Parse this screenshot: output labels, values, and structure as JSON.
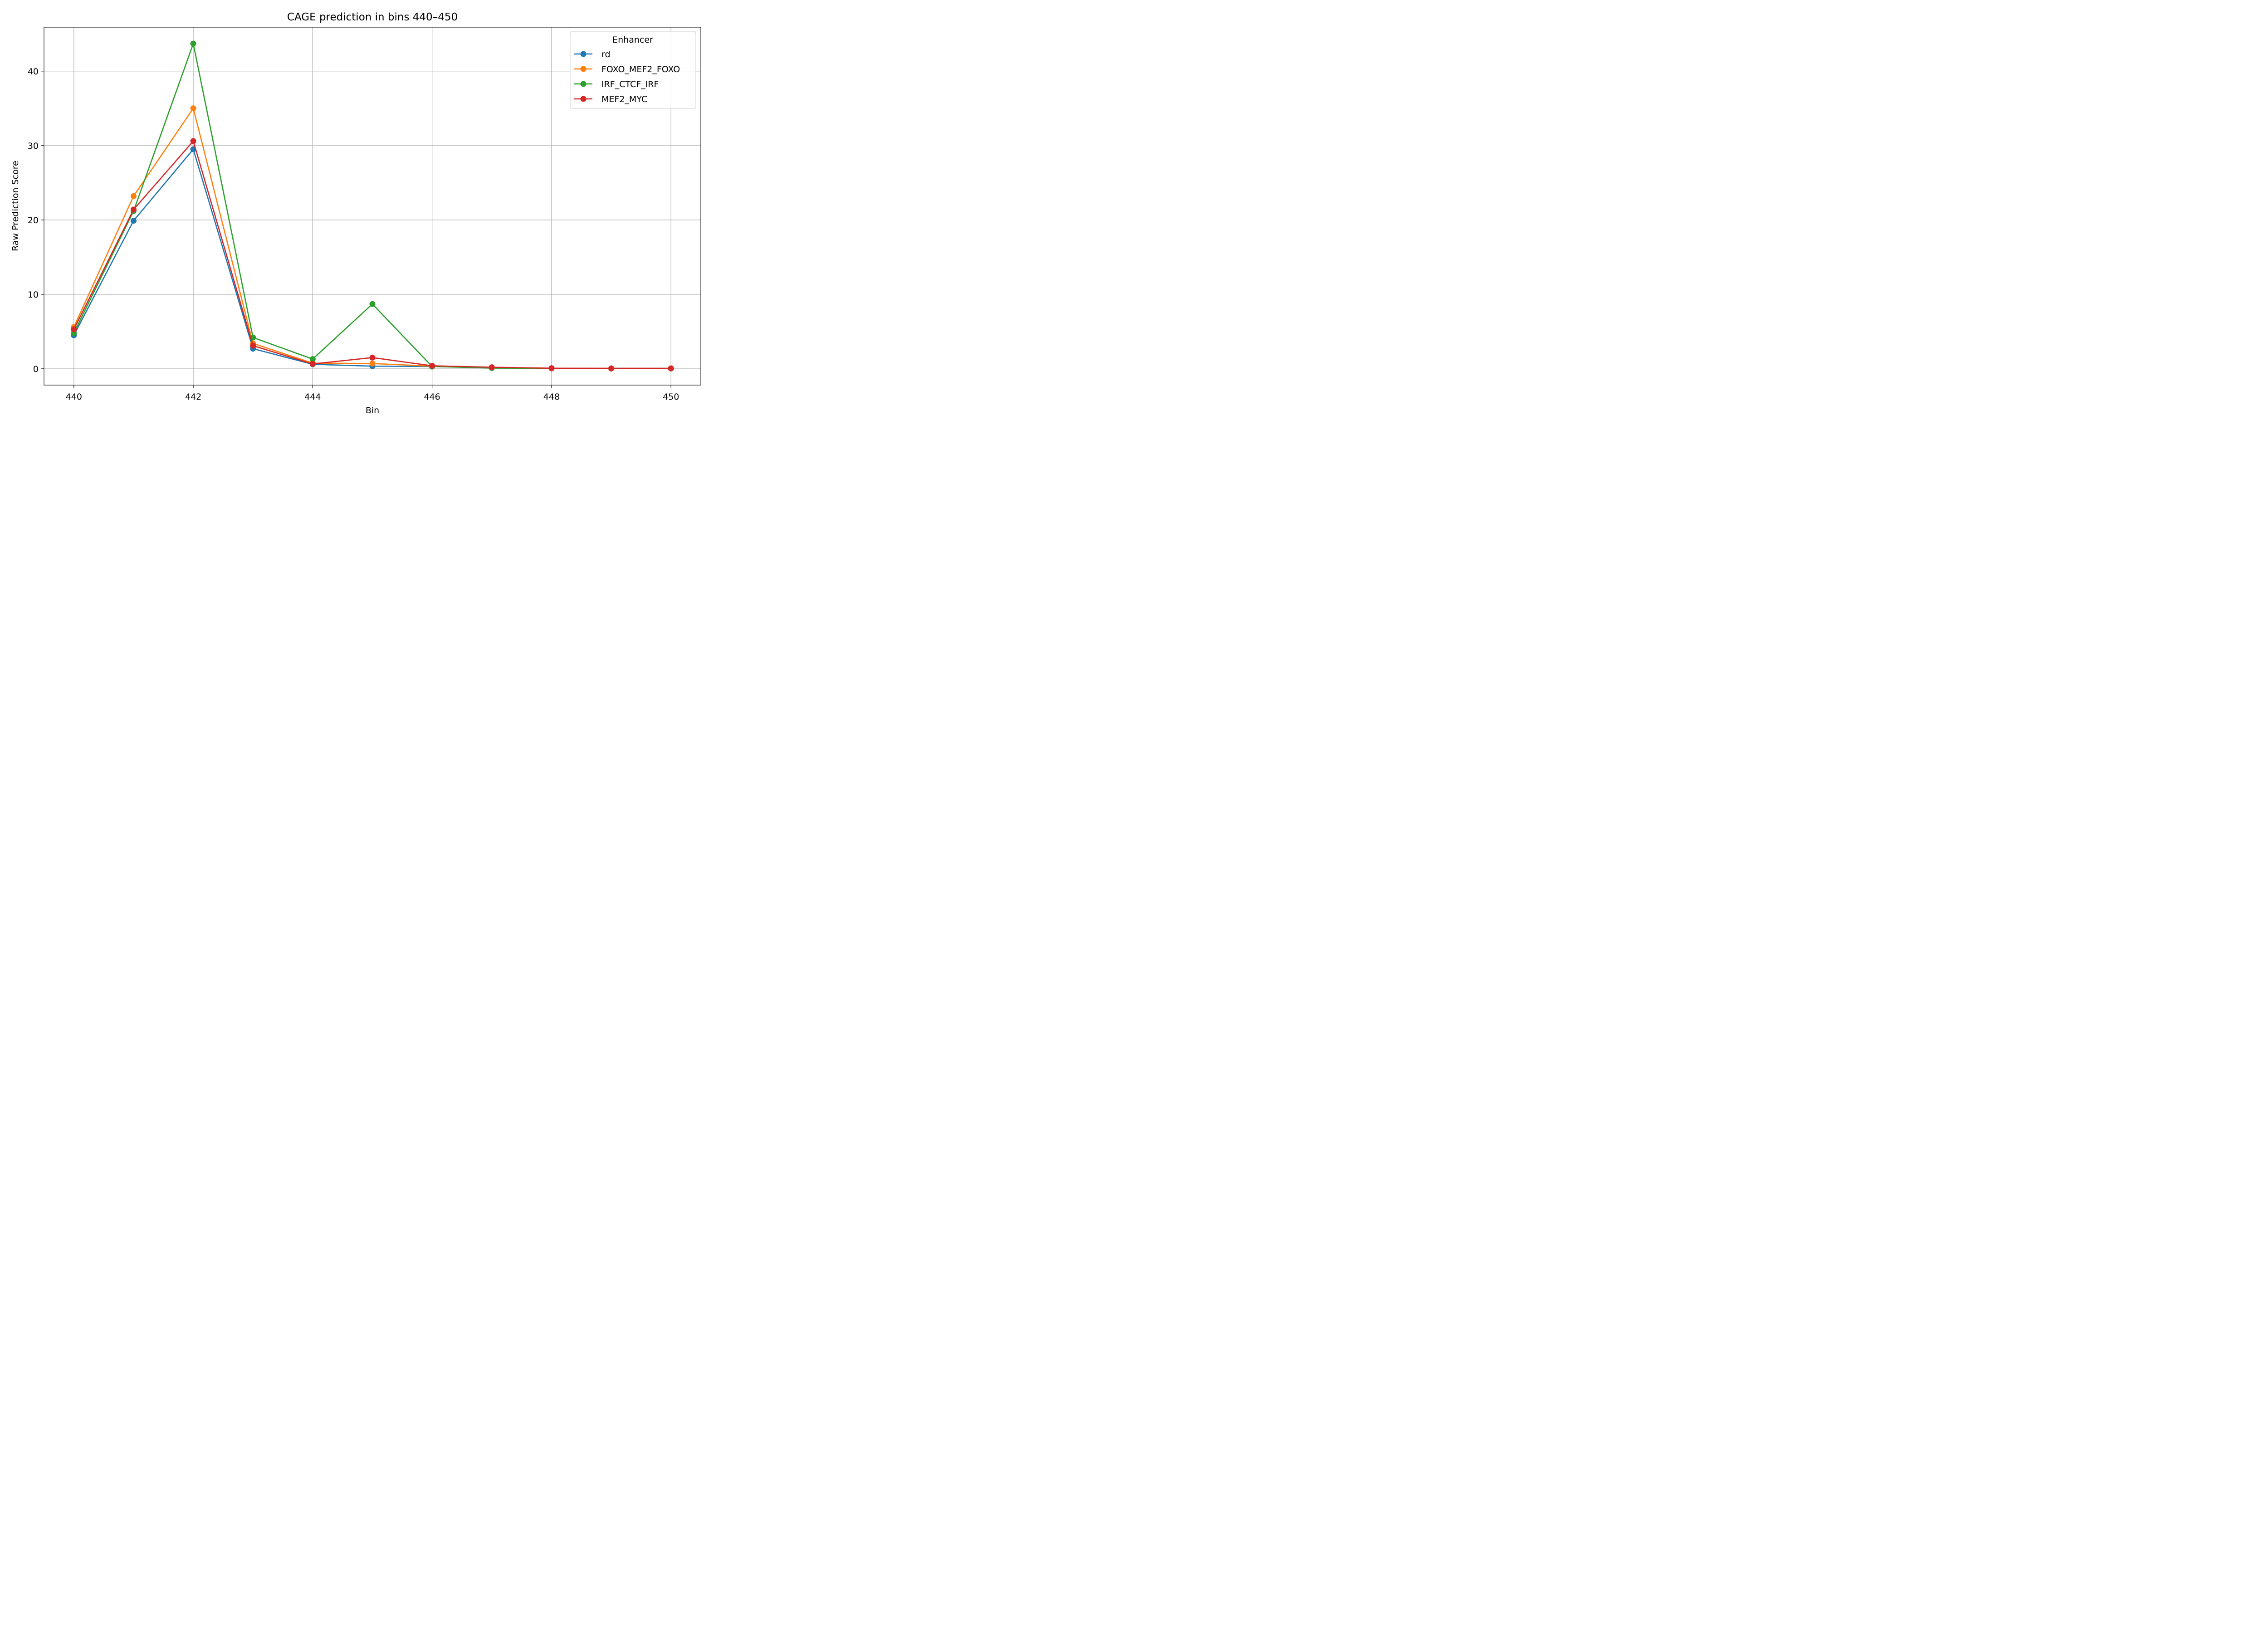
{
  "chart_data": {
    "type": "line",
    "title": "CAGE prediction in bins 440–450",
    "xlabel": "Bin",
    "ylabel": "Raw Prediction Score",
    "x": [
      440,
      441,
      442,
      443,
      444,
      445,
      446,
      447,
      448,
      449,
      450
    ],
    "xlim": [
      439.5,
      450.5
    ],
    "ylim": [
      -2.2,
      45.9
    ],
    "xticks": [
      440,
      442,
      444,
      446,
      448,
      450
    ],
    "yticks": [
      0,
      10,
      20,
      30,
      40
    ],
    "xtick_labels": [
      "440",
      "442",
      "444",
      "446",
      "448",
      "450"
    ],
    "ytick_labels": [
      "0",
      "10",
      "20",
      "30",
      "40"
    ],
    "grid": true,
    "legend": {
      "title": "Enhancer",
      "placement": "top-right"
    },
    "series": [
      {
        "name": "rd",
        "color": "#1f77b4",
        "values": [
          4.5,
          19.9,
          29.5,
          2.7,
          0.6,
          0.35,
          0.3,
          0.15,
          0.07,
          0.05,
          0.05
        ]
      },
      {
        "name": "FOXO_MEF2_FOXO",
        "color": "#ff7f0e",
        "values": [
          5.6,
          23.2,
          35.0,
          3.4,
          0.75,
          0.7,
          0.35,
          0.15,
          0.07,
          0.05,
          0.05
        ]
      },
      {
        "name": "IRF_CTCF_IRF",
        "color": "#2ca02c",
        "values": [
          4.8,
          21.2,
          43.7,
          4.2,
          1.3,
          8.7,
          0.3,
          0.1,
          0.05,
          0.03,
          0.03
        ]
      },
      {
        "name": "MEF2_MYC",
        "color": "#d62728",
        "values": [
          5.3,
          21.4,
          30.6,
          3.1,
          0.65,
          1.5,
          0.4,
          0.2,
          0.07,
          0.05,
          0.05
        ]
      }
    ]
  }
}
